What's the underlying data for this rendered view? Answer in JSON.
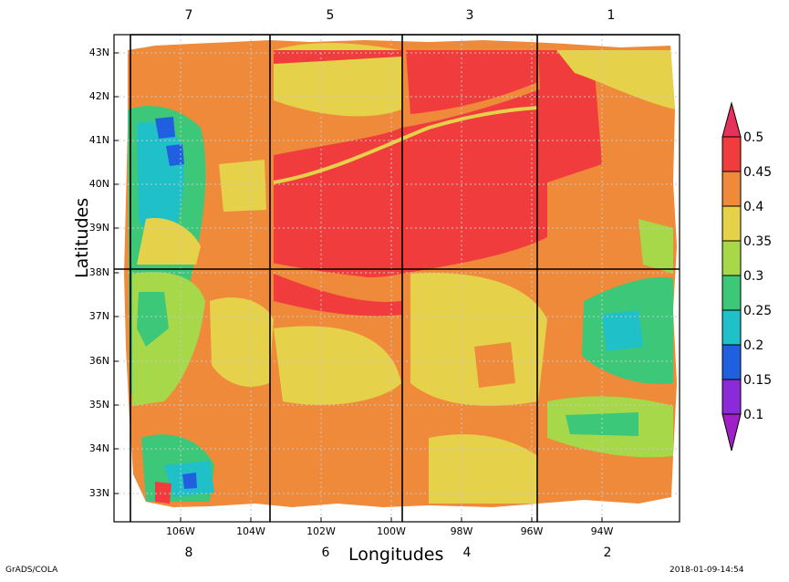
{
  "map": {
    "x_axis_title": "Longitudes",
    "y_axis_title": "Latitudes",
    "lon_ticks": [
      "106W",
      "104W",
      "102W",
      "100W",
      "98W",
      "96W",
      "94W"
    ],
    "lat_ticks": [
      "43N",
      "42N",
      "41N",
      "40N",
      "39N",
      "38N",
      "37N",
      "36N",
      "35N",
      "34N",
      "33N"
    ],
    "panel_numbers_top": [
      "7",
      "5",
      "3",
      "1"
    ],
    "panel_numbers_bottom": [
      "8",
      "6",
      "4",
      "2"
    ],
    "grid_lines": "dotted"
  },
  "colorbar": {
    "labels": [
      "0.5",
      "0.45",
      "0.4",
      "0.35",
      "0.3",
      "0.25",
      "0.2",
      "0.15",
      "0.1"
    ],
    "colors": [
      "#e6325a",
      "#f03c3c",
      "#ee8a3a",
      "#e6d24a",
      "#a6d84a",
      "#3cc878",
      "#20c0c8",
      "#2060e0",
      "#8a2ad8",
      "#a020c8"
    ]
  },
  "footer": {
    "left": "GrADS/COLA",
    "right": "2018-01-09-14:54"
  }
}
